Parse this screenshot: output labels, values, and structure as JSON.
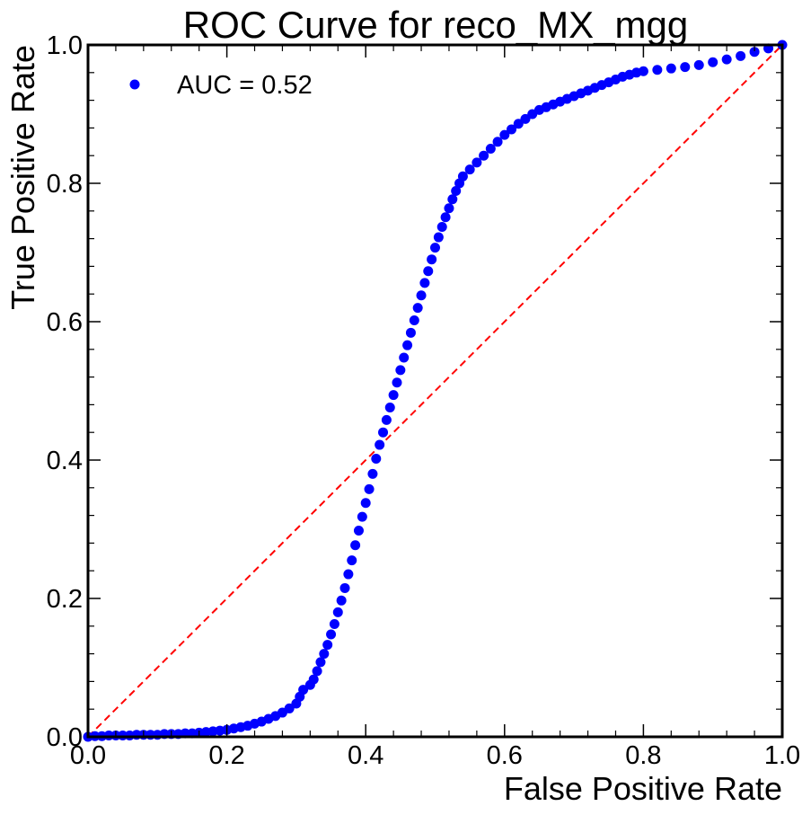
{
  "chart_data": {
    "type": "scatter",
    "title": "ROC Curve for reco_MX_mgg",
    "xlabel": "False Positive Rate",
    "ylabel": "True Positive Rate",
    "xlim": [
      0,
      1
    ],
    "ylim": [
      0,
      1
    ],
    "xticks": [
      "0.0",
      "0.2",
      "0.4",
      "0.6",
      "0.8",
      "1.0"
    ],
    "yticks": [
      "0.0",
      "0.2",
      "0.4",
      "0.6",
      "0.8",
      "1.0"
    ],
    "grid": false,
    "legend_position": "top-left",
    "series": [
      {
        "name": "AUC = 0.52",
        "color": "#0000ff",
        "marker": "circle",
        "points": [
          [
            0.0,
            0.0
          ],
          [
            0.01,
            0.001
          ],
          [
            0.02,
            0.001
          ],
          [
            0.03,
            0.002
          ],
          [
            0.04,
            0.002
          ],
          [
            0.05,
            0.002
          ],
          [
            0.06,
            0.002
          ],
          [
            0.07,
            0.003
          ],
          [
            0.08,
            0.003
          ],
          [
            0.09,
            0.003
          ],
          [
            0.1,
            0.003
          ],
          [
            0.11,
            0.004
          ],
          [
            0.12,
            0.004
          ],
          [
            0.13,
            0.004
          ],
          [
            0.14,
            0.005
          ],
          [
            0.15,
            0.005
          ],
          [
            0.16,
            0.006
          ],
          [
            0.17,
            0.007
          ],
          [
            0.18,
            0.008
          ],
          [
            0.19,
            0.009
          ],
          [
            0.2,
            0.01
          ],
          [
            0.21,
            0.012
          ],
          [
            0.22,
            0.014
          ],
          [
            0.23,
            0.016
          ],
          [
            0.24,
            0.019
          ],
          [
            0.25,
            0.022
          ],
          [
            0.26,
            0.026
          ],
          [
            0.27,
            0.03
          ],
          [
            0.28,
            0.035
          ],
          [
            0.29,
            0.041
          ],
          [
            0.3,
            0.048
          ],
          [
            0.305,
            0.058
          ],
          [
            0.31,
            0.068
          ],
          [
            0.32,
            0.075
          ],
          [
            0.325,
            0.083
          ],
          [
            0.33,
            0.095
          ],
          [
            0.335,
            0.108
          ],
          [
            0.34,
            0.12
          ],
          [
            0.345,
            0.133
          ],
          [
            0.35,
            0.148
          ],
          [
            0.355,
            0.163
          ],
          [
            0.36,
            0.18
          ],
          [
            0.365,
            0.197
          ],
          [
            0.37,
            0.215
          ],
          [
            0.375,
            0.235
          ],
          [
            0.38,
            0.255
          ],
          [
            0.385,
            0.277
          ],
          [
            0.39,
            0.298
          ],
          [
            0.395,
            0.318
          ],
          [
            0.4,
            0.338
          ],
          [
            0.405,
            0.358
          ],
          [
            0.41,
            0.38
          ],
          [
            0.415,
            0.402
          ],
          [
            0.42,
            0.422
          ],
          [
            0.425,
            0.44
          ],
          [
            0.43,
            0.458
          ],
          [
            0.435,
            0.476
          ],
          [
            0.44,
            0.494
          ],
          [
            0.445,
            0.512
          ],
          [
            0.45,
            0.53
          ],
          [
            0.455,
            0.548
          ],
          [
            0.46,
            0.566
          ],
          [
            0.465,
            0.584
          ],
          [
            0.47,
            0.602
          ],
          [
            0.475,
            0.62
          ],
          [
            0.48,
            0.638
          ],
          [
            0.485,
            0.656
          ],
          [
            0.49,
            0.673
          ],
          [
            0.495,
            0.69
          ],
          [
            0.5,
            0.707
          ],
          [
            0.505,
            0.722
          ],
          [
            0.51,
            0.737
          ],
          [
            0.515,
            0.751
          ],
          [
            0.52,
            0.764
          ],
          [
            0.525,
            0.777
          ],
          [
            0.53,
            0.789
          ],
          [
            0.535,
            0.8
          ],
          [
            0.54,
            0.81
          ],
          [
            0.55,
            0.82
          ],
          [
            0.56,
            0.83
          ],
          [
            0.57,
            0.84
          ],
          [
            0.58,
            0.85
          ],
          [
            0.59,
            0.86
          ],
          [
            0.6,
            0.87
          ],
          [
            0.61,
            0.878
          ],
          [
            0.62,
            0.886
          ],
          [
            0.63,
            0.893
          ],
          [
            0.64,
            0.9
          ],
          [
            0.65,
            0.906
          ],
          [
            0.66,
            0.91
          ],
          [
            0.67,
            0.914
          ],
          [
            0.68,
            0.918
          ],
          [
            0.69,
            0.922
          ],
          [
            0.7,
            0.926
          ],
          [
            0.71,
            0.93
          ],
          [
            0.72,
            0.934
          ],
          [
            0.73,
            0.938
          ],
          [
            0.74,
            0.942
          ],
          [
            0.75,
            0.946
          ],
          [
            0.76,
            0.95
          ],
          [
            0.77,
            0.954
          ],
          [
            0.78,
            0.957
          ],
          [
            0.79,
            0.96
          ],
          [
            0.8,
            0.962
          ],
          [
            0.82,
            0.964
          ],
          [
            0.84,
            0.966
          ],
          [
            0.86,
            0.968
          ],
          [
            0.88,
            0.971
          ],
          [
            0.9,
            0.975
          ],
          [
            0.92,
            0.979
          ],
          [
            0.94,
            0.984
          ],
          [
            0.96,
            0.99
          ],
          [
            0.98,
            0.995
          ],
          [
            1.0,
            1.0
          ]
        ]
      }
    ],
    "reference_line": {
      "from": [
        0,
        0
      ],
      "to": [
        1,
        1
      ],
      "color": "#ff0000",
      "style": "dashed"
    }
  }
}
